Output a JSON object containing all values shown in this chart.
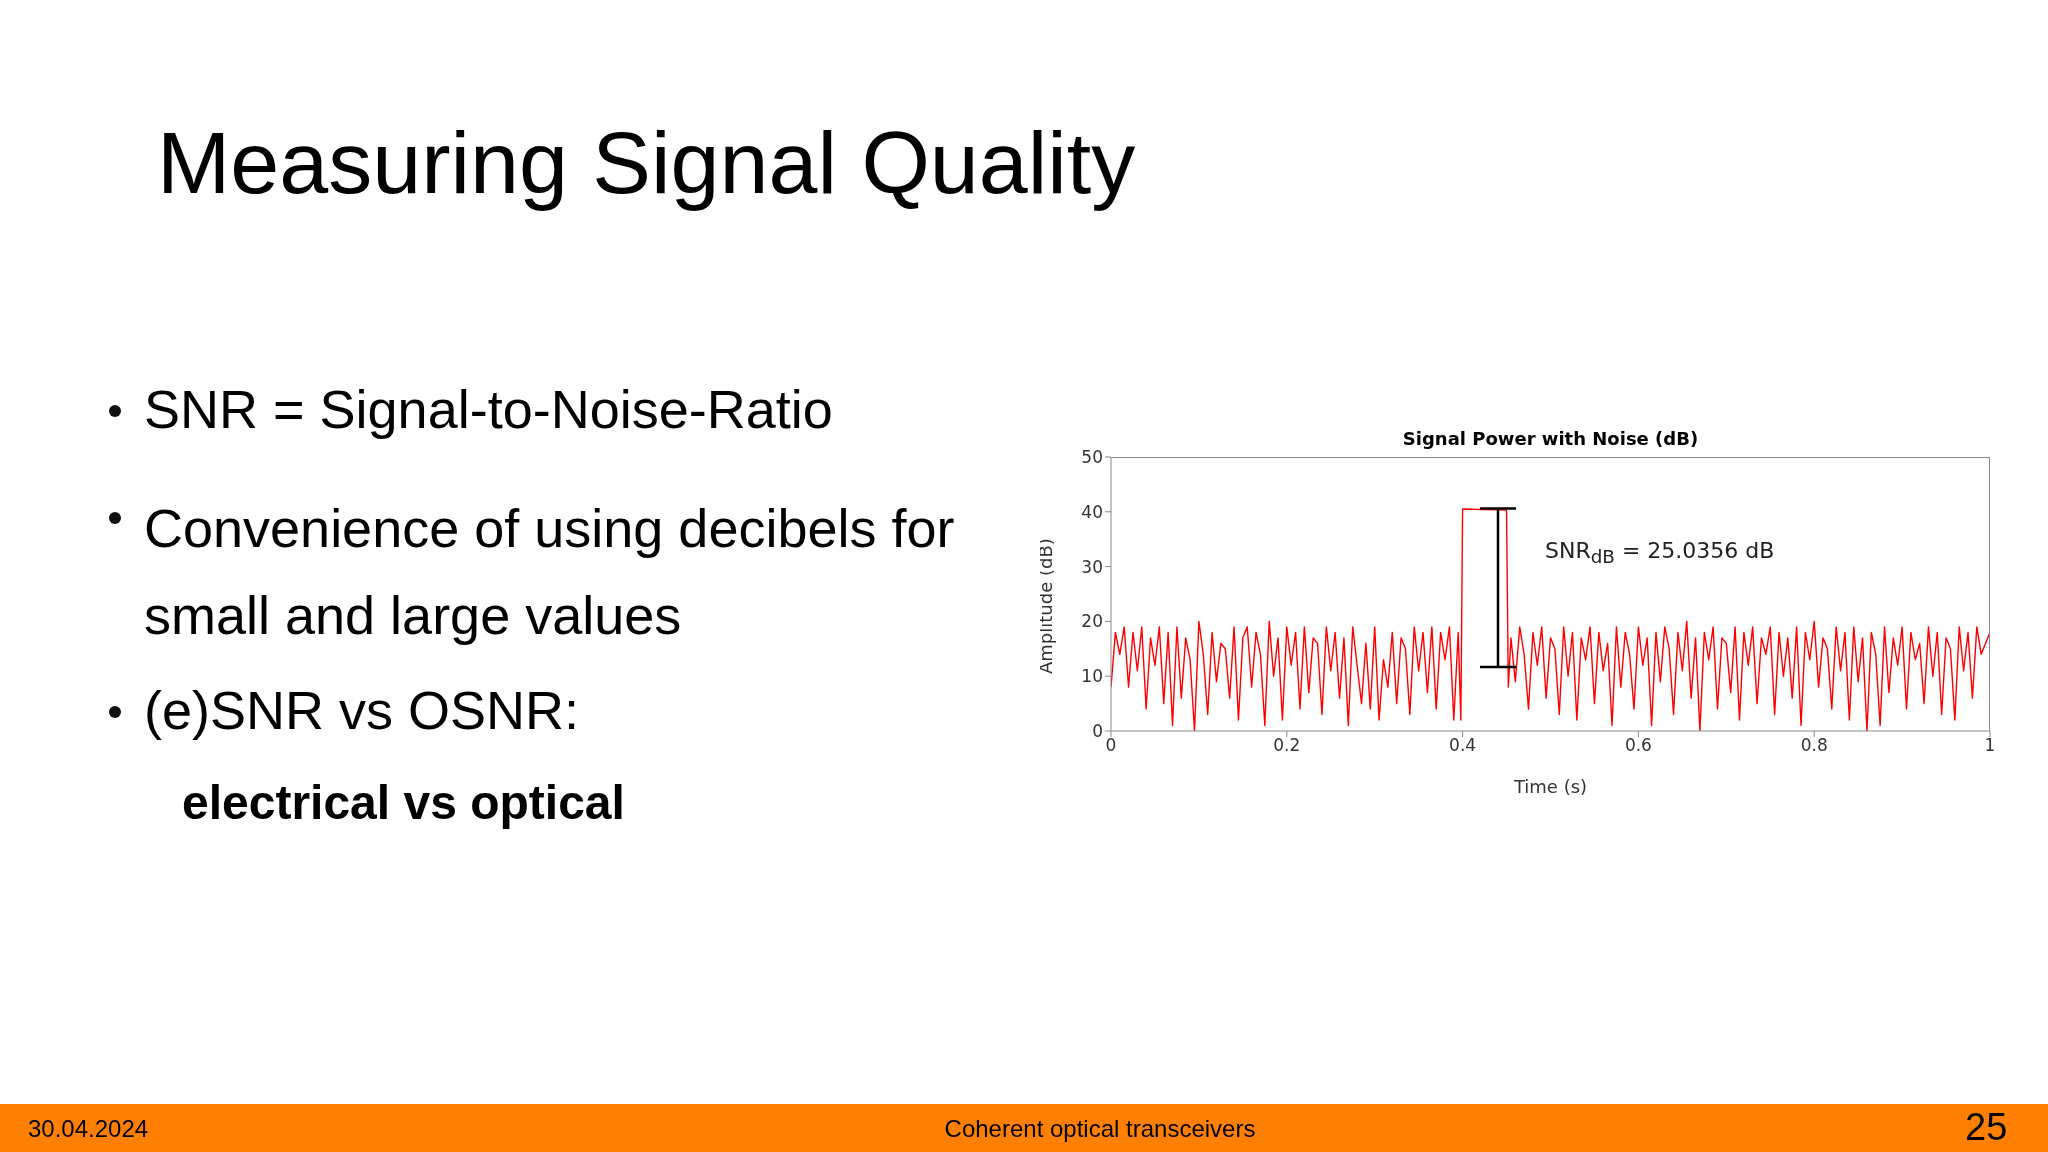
{
  "chart_data": {
    "type": "line",
    "title": "Signal Power with Noise (dB)",
    "xlabel": "Time (s)",
    "ylabel": "Amplitude (dB)",
    "annotations": [
      "Measuring Signal Quality",
      "SNR = Signal-to-Noise-Ratio",
      "Convenience of using decibels for small and large values",
      "(e)SNR vs OSNR:",
      "electrical vs optical",
      "SNR$_{dB}$ = 25.0356 dB",
      "30.04.2024",
      "Coherent optical transceivers",
      "25"
    ],
    "series": [
      {
        "color": "#ff0000",
        "x": [
          0,
          0.005,
          0.01,
          0.015,
          0.02,
          0.025,
          0.03,
          0.035,
          0.04,
          0.045,
          0.05,
          0.055,
          0.06,
          0.065,
          0.07,
          0.075,
          0.08,
          0.085,
          0.09,
          0.095,
          0.1,
          0.105,
          0.11,
          0.115,
          0.12,
          0.125,
          0.13,
          0.135,
          0.14,
          0.145,
          0.15,
          0.155,
          0.16,
          0.165,
          0.17,
          0.175,
          0.18,
          0.185,
          0.19,
          0.195,
          0.2,
          0.205,
          0.21,
          0.215,
          0.22,
          0.225,
          0.23,
          0.235,
          0.24,
          0.245,
          0.25,
          0.255,
          0.26,
          0.265,
          0.27,
          0.275,
          0.28,
          0.285,
          0.29,
          0.295,
          0.3,
          0.305,
          0.31,
          0.315,
          0.32,
          0.325,
          0.33,
          0.335,
          0.34,
          0.345,
          0.35,
          0.355,
          0.36,
          0.365,
          0.37,
          0.375,
          0.38,
          0.385,
          0.39,
          0.395,
          0.398,
          0.4,
          0.45,
          0.452,
          0.455,
          0.46,
          0.465,
          0.47,
          0.475,
          0.48,
          0.485,
          0.49,
          0.495,
          0.5,
          0.505,
          0.51,
          0.515,
          0.52,
          0.525,
          0.53,
          0.535,
          0.54,
          0.545,
          0.55,
          0.555,
          0.56,
          0.565,
          0.57,
          0.575,
          0.58,
          0.585,
          0.59,
          0.595,
          0.6,
          0.605,
          0.61,
          0.615,
          0.62,
          0.625,
          0.63,
          0.635,
          0.64,
          0.645,
          0.65,
          0.655,
          0.66,
          0.665,
          0.67,
          0.675,
          0.68,
          0.685,
          0.69,
          0.695,
          0.7,
          0.705,
          0.71,
          0.715,
          0.72,
          0.725,
          0.73,
          0.735,
          0.74,
          0.745,
          0.75,
          0.755,
          0.76,
          0.765,
          0.77,
          0.775,
          0.78,
          0.785,
          0.79,
          0.795,
          0.8,
          0.805,
          0.81,
          0.815,
          0.82,
          0.825,
          0.83,
          0.835,
          0.84,
          0.845,
          0.85,
          0.855,
          0.86,
          0.865,
          0.87,
          0.875,
          0.88,
          0.885,
          0.89,
          0.895,
          0.9,
          0.905,
          0.91,
          0.915,
          0.92,
          0.925,
          0.93,
          0.935,
          0.94,
          0.945,
          0.95,
          0.955,
          0.96,
          0.965,
          0.97,
          0.975,
          0.98,
          0.985,
          0.99,
          0.995,
          1
        ],
        "values": [
          8,
          18,
          14,
          19,
          8,
          18,
          11,
          19,
          4,
          17,
          12,
          19,
          5,
          18,
          1,
          19,
          6,
          17,
          13,
          0,
          20,
          14,
          3,
          18,
          9,
          16,
          15,
          6,
          19,
          2,
          17,
          19,
          8,
          18,
          14,
          1,
          20,
          10,
          17,
          2,
          19,
          12,
          18,
          4,
          19,
          7,
          17,
          16,
          3,
          19,
          11,
          18,
          6,
          17,
          1,
          19,
          12,
          5,
          16,
          4,
          19,
          2,
          13,
          8,
          18,
          5,
          17,
          15,
          3,
          19,
          11,
          18,
          7,
          19,
          4,
          18,
          13,
          19,
          2,
          18,
          2,
          40.5,
          40.3,
          8,
          17,
          9,
          19,
          14,
          4,
          18,
          12,
          19,
          6,
          17,
          15,
          3,
          19,
          10,
          18,
          2,
          17,
          13,
          19,
          5,
          18,
          11,
          16,
          1,
          19,
          8,
          18,
          14,
          4,
          19,
          12,
          17,
          1,
          18,
          9,
          19,
          15,
          3,
          18,
          11,
          20,
          6,
          17,
          0,
          18,
          13,
          19,
          4,
          17,
          16,
          7,
          19,
          2,
          18,
          12,
          19,
          5,
          17,
          14,
          19,
          3,
          18,
          10,
          17,
          6,
          19,
          1,
          18,
          13,
          20,
          8,
          17,
          15,
          4,
          19,
          11,
          18,
          2,
          19,
          9,
          17,
          0,
          18,
          14,
          1,
          19,
          7,
          17,
          12,
          19,
          4,
          18,
          13,
          16,
          5,
          19,
          10,
          18,
          3,
          17,
          15,
          2,
          19,
          11,
          18,
          6,
          19,
          14,
          16,
          18
        ]
      }
    ],
    "xlim": [
      0,
      1
    ],
    "xticks": [
      0,
      0.2,
      0.4,
      0.6,
      0.8,
      1
    ],
    "ylim": [
      0,
      50
    ],
    "yticks": [
      0,
      10,
      20,
      30,
      40,
      50
    ],
    "grid": false,
    "marker": "none",
    "line_style": "solid"
  }
}
